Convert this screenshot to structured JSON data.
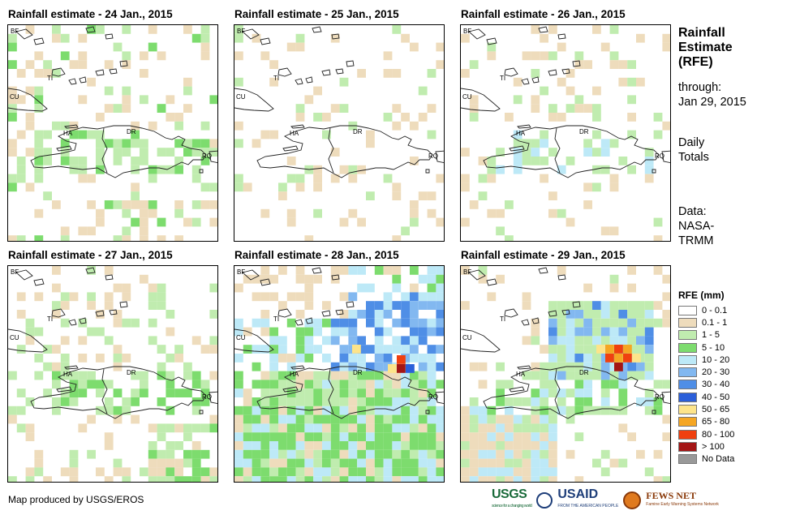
{
  "panels": [
    {
      "title": "Rainfall estimate - 24 Jan., 2015"
    },
    {
      "title": "Rainfall estimate - 25 Jan., 2015"
    },
    {
      "title": "Rainfall estimate - 26 Jan., 2015"
    },
    {
      "title": "Rainfall estimate - 27 Jan., 2015"
    },
    {
      "title": "Rainfall estimate - 28 Jan., 2015"
    },
    {
      "title": "Rainfall estimate - 29 Jan., 2015"
    }
  ],
  "map_labels": {
    "bf": "BF",
    "cu": "CU",
    "ti": "TI",
    "ha": "HA",
    "dr": "DR",
    "rq": "RQ"
  },
  "sidebar": {
    "title_lines": [
      "Rainfall",
      "Estimate",
      "(RFE)"
    ],
    "through_label": "through:",
    "through_date": "Jan 29, 2015",
    "totals_lines": [
      "Daily",
      "Totals"
    ],
    "data_lines": [
      "Data:",
      "NASA-",
      "TRMM"
    ]
  },
  "legend": {
    "title": "RFE (mm)",
    "items": [
      {
        "label": "0 - 0.1",
        "color": "#ffffff"
      },
      {
        "label": "0.1 - 1",
        "color": "#eedcbc"
      },
      {
        "label": "1 - 5",
        "color": "#c0ecaf"
      },
      {
        "label": "5 - 10",
        "color": "#7ddc6e"
      },
      {
        "label": "10 - 20",
        "color": "#bde9f7"
      },
      {
        "label": "20 - 30",
        "color": "#82b8f0"
      },
      {
        "label": "30 - 40",
        "color": "#4f8ee6"
      },
      {
        "label": "40 - 50",
        "color": "#2b5fd9"
      },
      {
        "label": "50 - 65",
        "color": "#fde48a"
      },
      {
        "label": "65 - 80",
        "color": "#f5a623"
      },
      {
        "label": "80 - 100",
        "color": "#f0400f"
      },
      {
        "label": "> 100",
        "color": "#a31515"
      },
      {
        "label": "No Data",
        "color": "#999999"
      }
    ]
  },
  "footer": {
    "credit": "Map produced by USGS/EROS"
  },
  "logos": {
    "usgs": "USGS",
    "usgs_tagline": "science for a changing world",
    "usaid": "USAID",
    "usaid_tagline": "FROM THE AMERICAN PEOPLE",
    "fews": "FEWS NET",
    "fews_tagline": "Famine Early Warning Systems Network"
  }
}
